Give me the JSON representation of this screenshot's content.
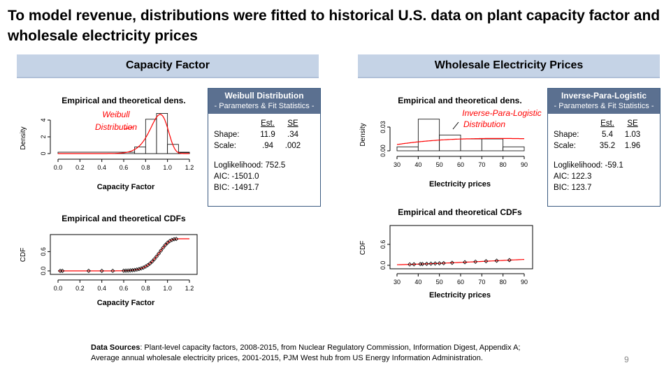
{
  "title": "To model revenue, distributions were fitted to historical U.S. data on plant capacity factor and wholesale electricity prices",
  "sections": {
    "left_header": "Capacity Factor",
    "right_header": "Wholesale Electricity Prices"
  },
  "weibull_box": {
    "title": "Weibull Distribution",
    "subtitle": "- Parameters & Fit Statistics -",
    "col_est": "Est.",
    "col_se": "SE",
    "shape_label": "Shape:",
    "shape_est": "11.9",
    "shape_se": ".34",
    "scale_label": "Scale:",
    "scale_est": ".94",
    "scale_se": ".002",
    "loglik": "Loglikelihood:  752.5",
    "aic": "AIC:  -1501.0",
    "bic": "BIC:  -1491.7"
  },
  "ipl_box": {
    "title": "Inverse-Para-Logistic",
    "subtitle": "- Parameters & Fit Statistics -",
    "col_est": "Est.",
    "col_se": "SE",
    "shape_label": "Shape:",
    "shape_est": "5.4",
    "shape_se": "1.03",
    "scale_label": "Scale:",
    "scale_est": "35.2",
    "scale_se": "1.96",
    "loglik": "Loglikelihood:  -59.1",
    "aic": "AIC:  122.3",
    "bic": "BIC:  123.7"
  },
  "chart_data": [
    {
      "type": "bar",
      "title": "Empirical and theoretical dens.",
      "xlabel": "Capacity Factor",
      "ylabel": "Density",
      "xlim": [
        0,
        1.2
      ],
      "ylim": [
        0,
        5
      ],
      "x_ticks": [
        "0.0",
        "0.2",
        "0.4",
        "0.6",
        "0.8",
        "1.0",
        "1.2"
      ],
      "y_ticks": [
        "0",
        "2",
        "4"
      ],
      "bins": [
        [
          0.7,
          0.8,
          0.8
        ],
        [
          0.8,
          0.9,
          4.1
        ],
        [
          0.9,
          1.0,
          4.8
        ],
        [
          1.0,
          1.1,
          1.1
        ],
        [
          1.1,
          1.2,
          0.1
        ]
      ],
      "annotation": [
        "Weibull",
        "Distribution"
      ],
      "curve_color": "#ff0000"
    },
    {
      "type": "line",
      "title": "Empirical and theoretical CDFs",
      "xlabel": "Capacity Factor",
      "ylabel": "CDF",
      "xlim": [
        0,
        1.2
      ],
      "ylim": [
        0,
        1
      ],
      "x_ticks": [
        "0.0",
        "0.2",
        "0.4",
        "0.6",
        "0.8",
        "1.0",
        "1.2"
      ],
      "y_ticks": [
        "0.0",
        "0.6"
      ],
      "points_x": [
        0.02,
        0.04,
        0.28,
        0.4,
        0.5,
        0.6,
        0.62,
        0.64,
        0.66,
        0.68,
        0.7,
        0.72,
        0.74,
        0.76,
        0.78,
        0.8,
        0.82,
        0.84,
        0.86,
        0.88,
        0.9,
        0.92,
        0.94,
        0.96,
        0.98,
        1.0,
        1.02,
        1.04,
        1.06,
        1.08
      ],
      "curve_color": "#ff0000"
    },
    {
      "type": "bar",
      "title": "Empirical and theoretical dens.",
      "xlabel": "Electricity prices",
      "ylabel": "Density",
      "xlim": [
        30,
        90
      ],
      "ylim": [
        0,
        0.045
      ],
      "x_ticks": [
        "30",
        "40",
        "50",
        "60",
        "70",
        "80",
        "90"
      ],
      "y_ticks": [
        "0.00",
        "0.03"
      ],
      "bins": [
        [
          30,
          40,
          0.005
        ],
        [
          40,
          50,
          0.04
        ],
        [
          50,
          60,
          0.02
        ],
        [
          60,
          70,
          0.015
        ],
        [
          70,
          80,
          0.015
        ],
        [
          80,
          90,
          0.005
        ]
      ],
      "annotation": [
        "Inverse-Para-Logistic",
        "Distribution"
      ],
      "curve_color": "#ff0000"
    },
    {
      "type": "line",
      "title": "Empirical and theoretical CDFs",
      "xlabel": "Electricity prices",
      "ylabel": "CDF",
      "xlim": [
        30,
        90
      ],
      "ylim": [
        0,
        1
      ],
      "x_ticks": [
        "30",
        "40",
        "50",
        "60",
        "70",
        "80",
        "90"
      ],
      "y_ticks": [
        "0.0",
        "0.6"
      ],
      "points_x": [
        36,
        38,
        41,
        42,
        44,
        46,
        48,
        50,
        52,
        56,
        62,
        67,
        72,
        77,
        83
      ],
      "curve_color": "#ff0000"
    }
  ],
  "footer": {
    "label": "Data Sources",
    "line1_rest": ": Plant-level capacity factors, 2008-2015, from Nuclear Regulatory Commission, Information Digest, Appendix A;",
    "line2": "Average annual wholesale electricity prices, 2001-2015, PJM West hub from US Energy Information Administration."
  },
  "page_number": "9"
}
